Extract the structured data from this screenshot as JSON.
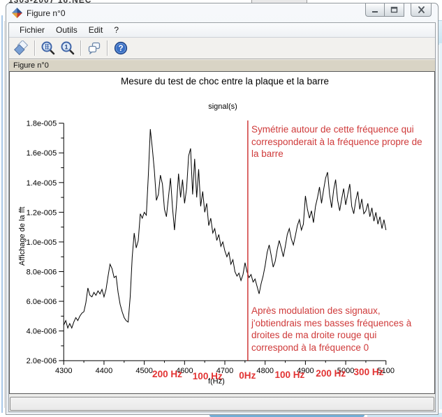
{
  "background": {
    "top_fragment_text": "1303-2007   16:NEC"
  },
  "window": {
    "title": "Figure n°0",
    "controls": {
      "minimize": "minimize",
      "maximize": "maximize",
      "close": "close"
    },
    "menu": {
      "items": [
        "Fichier",
        "Outils",
        "Edit",
        "?"
      ]
    },
    "toolbar": {
      "icons": [
        "export-figure",
        "zoom-area",
        "zoom-reset",
        "datatips",
        "help"
      ]
    },
    "figure_label": "Figure n°0",
    "status_text": ""
  },
  "chart_data": {
    "type": "line",
    "title": "Mesure du test de choc entre la plaque et la barre",
    "legend": "signal(s)",
    "xlabel": "f(Hz)",
    "ylabel": "Affichage de la fft",
    "xlim": [
      4300,
      5100
    ],
    "ylim": [
      2e-06,
      1.8e-05
    ],
    "grid": false,
    "x_ticks": [
      4300,
      4400,
      4500,
      4600,
      4700,
      4800,
      4900,
      5000,
      5100
    ],
    "y_ticks": [
      {
        "v": 2,
        "label": "2.0e-006"
      },
      {
        "v": 4,
        "label": "4.0e-006"
      },
      {
        "v": 6,
        "label": "6.0e-006"
      },
      {
        "v": 8,
        "label": "8.0e-006"
      },
      {
        "v": 10,
        "label": "1.0e-005"
      },
      {
        "v": 12,
        "label": "1.2e-005"
      },
      {
        "v": 14,
        "label": "1.4e-005"
      },
      {
        "v": 16,
        "label": "1.6e-005"
      },
      {
        "v": 18,
        "label": "1.8e-005"
      }
    ],
    "y_unit_scale": 1e-06,
    "series": [
      {
        "name": "signal(s)",
        "color": "#000000",
        "x_start": 4300,
        "x_step": 5,
        "y_micro": [
          4.4,
          4.7,
          4.2,
          4.5,
          4.2,
          4.6,
          4.9,
          4.7,
          5.0,
          5.2,
          5.3,
          5.9,
          6.9,
          6.4,
          6.3,
          6.6,
          6.4,
          6.7,
          6.5,
          6.8,
          6.3,
          6.8,
          7.7,
          8.5,
          8.2,
          7.6,
          7.7,
          6.6,
          5.8,
          5.3,
          4.9,
          4.7,
          4.6,
          6.3,
          9.0,
          10.6,
          9.6,
          10.1,
          11.9,
          11.6,
          12.0,
          11.8,
          14.5,
          17.6,
          16.3,
          14.8,
          12.8,
          13.2,
          14.5,
          13.9,
          12.2,
          11.7,
          13.0,
          14.3,
          12.3,
          10.8,
          12.5,
          14.6,
          13.0,
          14.2,
          12.6,
          13.6,
          15.8,
          16.3,
          13.2,
          15.6,
          13.0,
          14.9,
          12.4,
          13.4,
          12.0,
          12.6,
          11.1,
          11.6,
          10.6,
          10.9,
          10.1,
          10.5,
          9.7,
          10.0,
          9.4,
          9.0,
          9.3,
          8.5,
          8.8,
          8.0,
          7.7,
          7.9,
          7.4,
          7.8,
          8.6,
          8.0,
          7.6,
          7.8,
          7.3,
          7.5,
          7.0,
          6.5,
          7.2,
          7.7,
          8.4,
          9.3,
          9.8,
          9.1,
          8.3,
          8.7,
          9.5,
          10.1,
          9.6,
          9.0,
          9.7,
          10.5,
          10.9,
          10.2,
          9.8,
          10.4,
          11.1,
          11.5,
          10.8,
          11.2,
          13.1,
          12.2,
          11.6,
          12.1,
          11.3,
          12.4,
          13.0,
          13.7,
          12.6,
          13.5,
          14.3,
          14.7,
          13.2,
          12.3,
          13.5,
          14.2,
          12.8,
          12.1,
          12.9,
          13.6,
          12.5,
          13.2,
          13.9,
          12.4,
          11.9,
          12.8,
          13.4,
          12.2,
          12.9,
          11.9,
          12.1,
          12.6,
          11.7,
          12.3,
          11.4,
          12.0,
          11.2,
          11.7,
          10.9,
          11.5,
          10.8
        ]
      }
    ],
    "red_line": {
      "f": 4757,
      "color": "#cc2a2a"
    },
    "red_freq_labels": [
      {
        "f": 4557,
        "label": "200 Hz",
        "dy": 0
      },
      {
        "f": 4657,
        "label": "100 Hz",
        "dy": 3
      },
      {
        "f": 4756,
        "label": "0Hz",
        "dy": 2
      },
      {
        "f": 4861,
        "label": "100 Hz",
        "dy": 1
      },
      {
        "f": 4963,
        "label": "200 Hz",
        "dy": -1
      },
      {
        "f": 5057,
        "label": "300 Hz",
        "dy": -3
      }
    ],
    "red_label_color": "#e23434",
    "annotation_color": "#cf3a3a",
    "annotations": [
      {
        "id": "symmetry-note",
        "text": "Symétrie autour de cette fréquence qui\ncorresponderait à la fréquence propre de\nla barre"
      },
      {
        "id": "modulation-note",
        "text": "Après modulation des signaux,\nj'obtiendrais mes basses fréquences à\ndroites de ma droite rouge qui\ncorrespond à la fréquence 0"
      }
    ]
  }
}
